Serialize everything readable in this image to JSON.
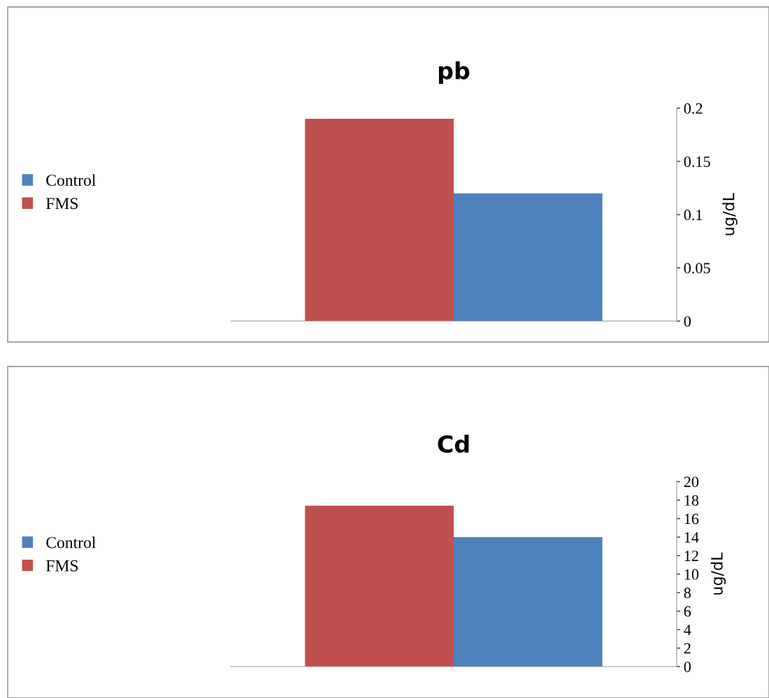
{
  "chart_data": [
    {
      "type": "bar",
      "title": "pb",
      "ylabel": "ug/dL",
      "categories": [
        null
      ],
      "ylim": [
        0,
        0.2
      ],
      "yticks": [
        0,
        0.05,
        0.1,
        0.15,
        0.2
      ],
      "tick_labels": "y",
      "grid": false,
      "legend": "left",
      "series": [
        {
          "name": "FMS",
          "color": "#c0504d",
          "values": [
            0.19
          ]
        },
        {
          "name": "Control",
          "color": "#4f81bd",
          "values": [
            0.12
          ]
        }
      ]
    },
    {
      "type": "bar",
      "title": "Cd",
      "ylabel": "ug/dL",
      "categories": [
        null
      ],
      "ylim": [
        0,
        20
      ],
      "yticks": [
        0,
        2,
        4,
        6,
        8,
        10,
        12,
        14,
        16,
        18,
        20
      ],
      "tick_labels": "y",
      "grid": false,
      "legend": "left",
      "series": [
        {
          "name": "FMS",
          "color": "#c0504d",
          "values": [
            17.4
          ]
        },
        {
          "name": "Control",
          "color": "#4f81bd",
          "values": [
            14
          ]
        }
      ]
    }
  ]
}
